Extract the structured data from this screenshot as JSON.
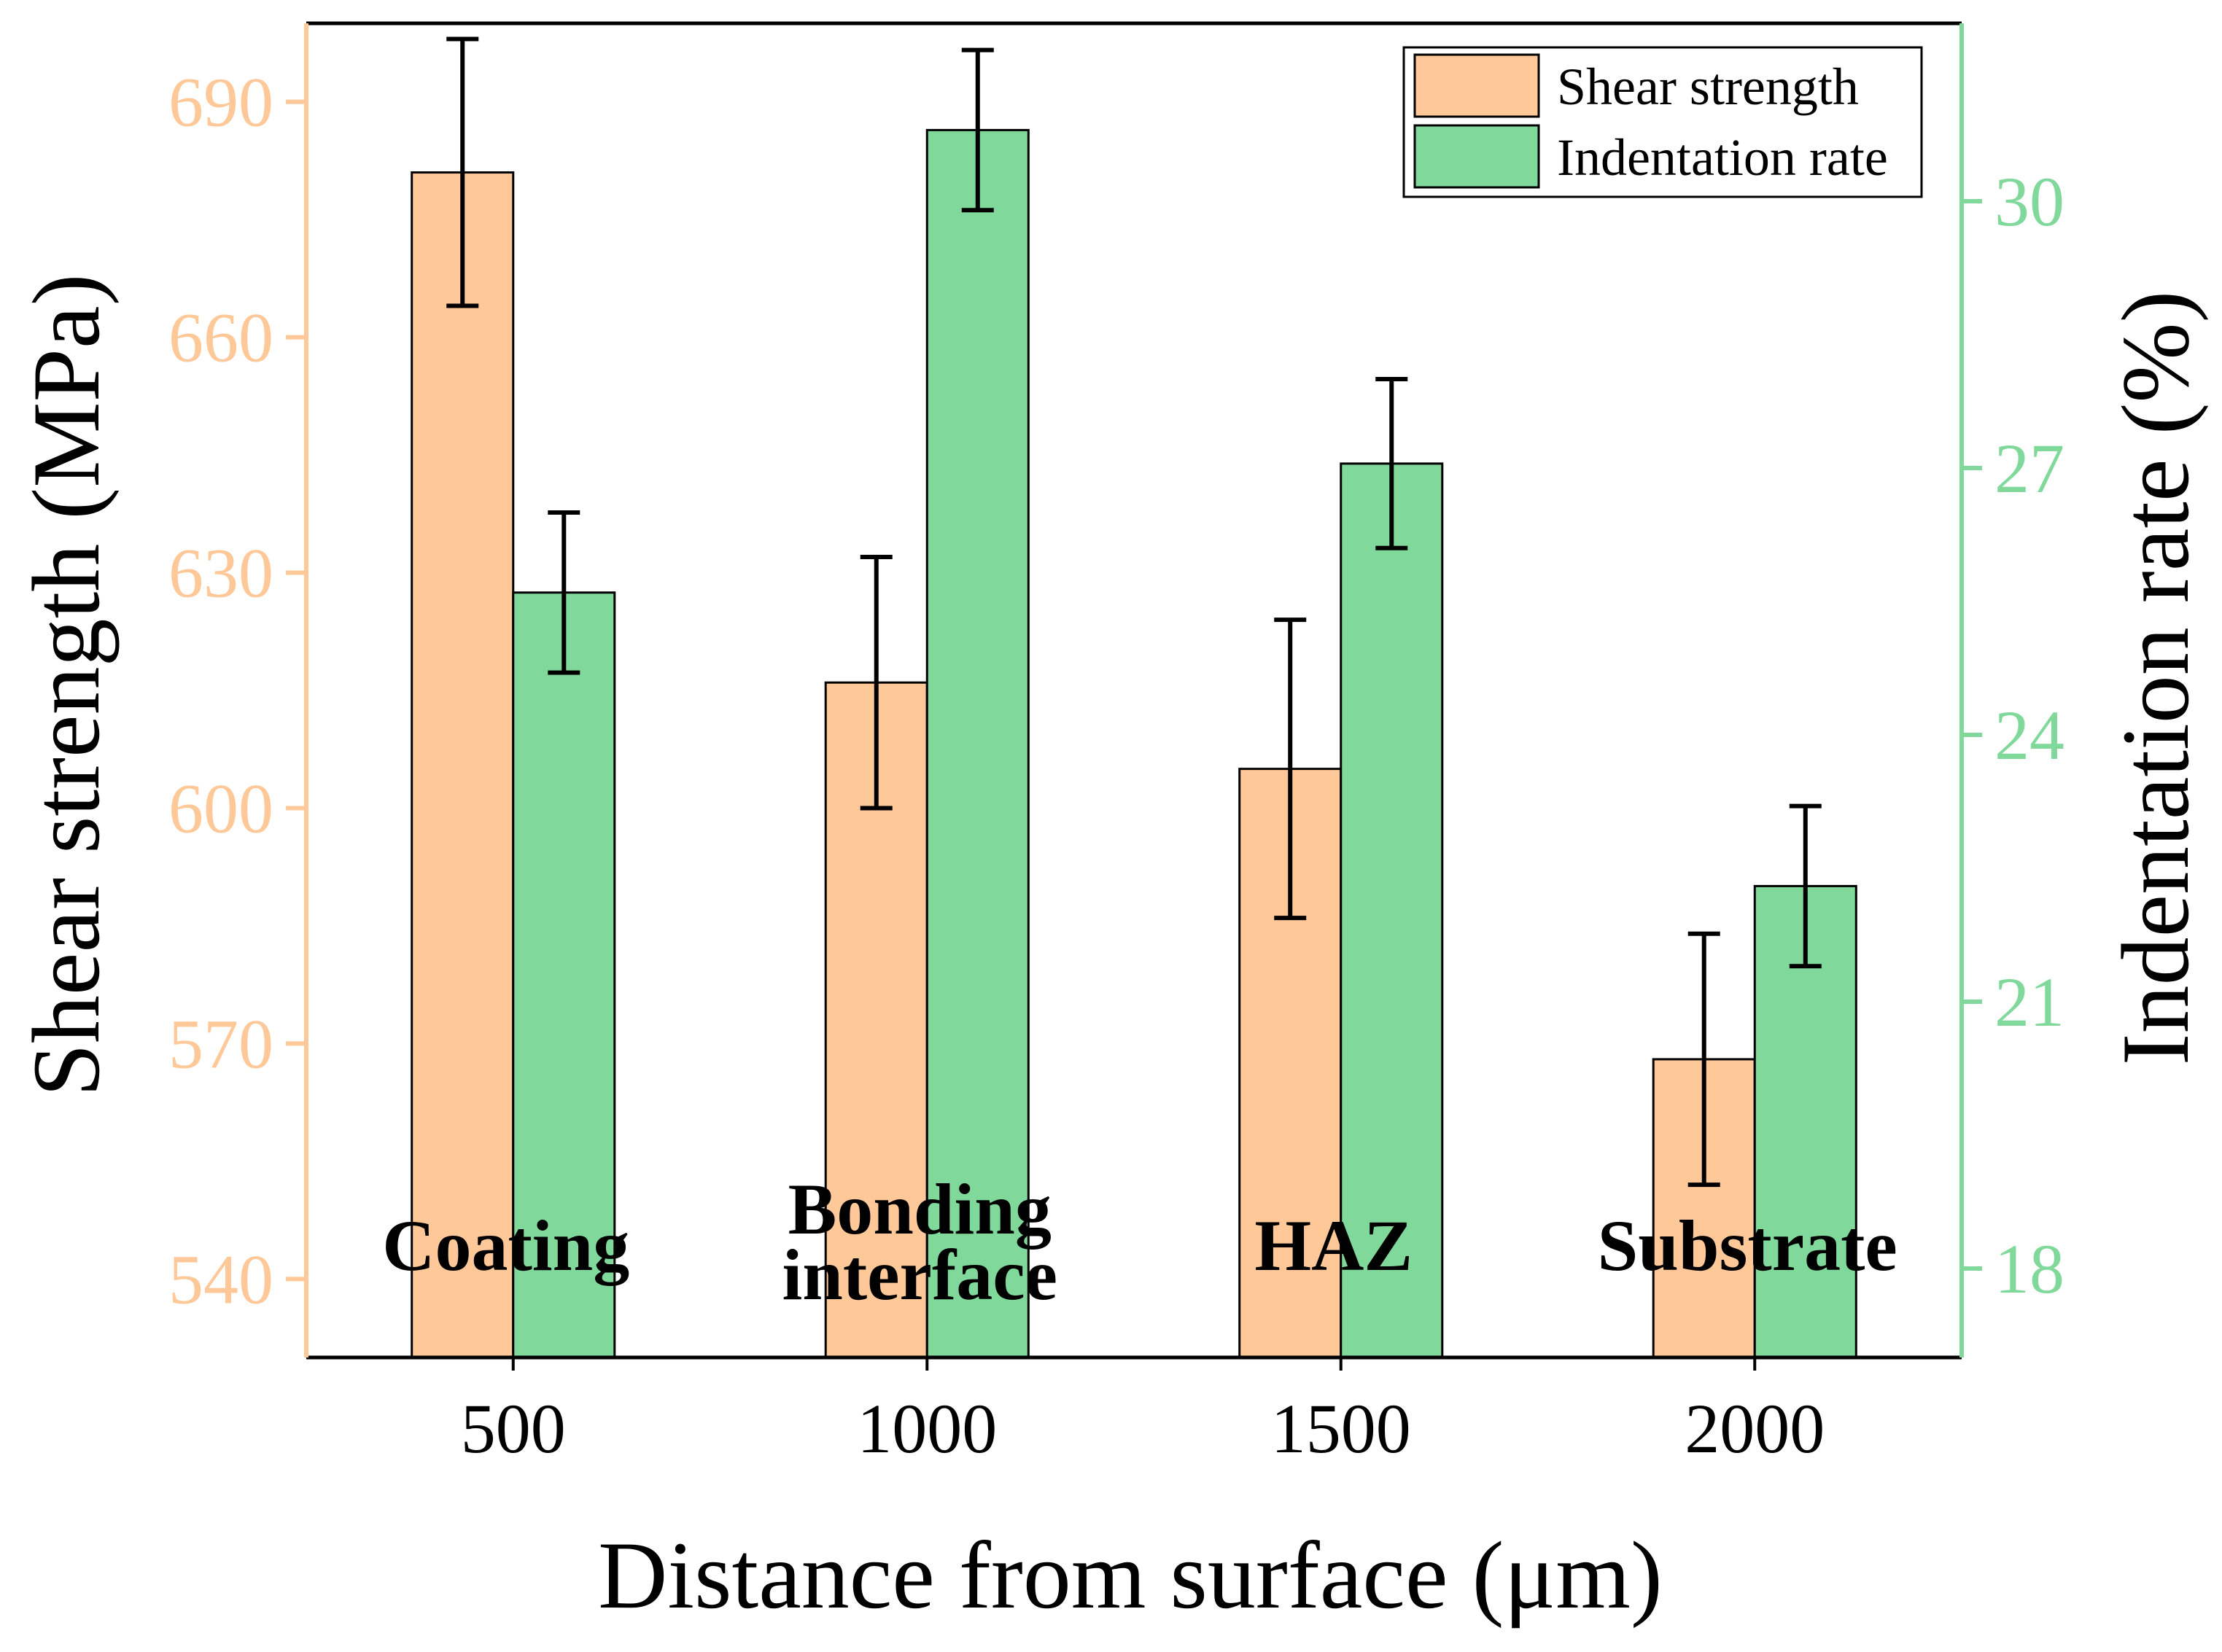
{
  "chart_data": {
    "type": "bar",
    "x": [
      500,
      1000,
      1500,
      2000
    ],
    "categories": [
      "500",
      "1000",
      "1500",
      "2000"
    ],
    "region_labels": [
      [
        "Coating"
      ],
      [
        "Bonding",
        "interface"
      ],
      [
        "HAZ"
      ],
      [
        "Substrate"
      ]
    ],
    "xlabel": "Distance from surface (μm)",
    "ylabel": "Shear strength (MPa)",
    "y2label": "Indentation rate (%)",
    "ylim": [
      530,
      700
    ],
    "y2lim": [
      17.0,
      32.0
    ],
    "yticks": [
      540,
      570,
      600,
      630,
      660,
      690
    ],
    "y2ticks": [
      18,
      21,
      24,
      27,
      30
    ],
    "series": [
      {
        "name": "Shear strength",
        "axis": "left",
        "color": "#FFC899",
        "values": [
          681,
          616,
          605,
          568
        ],
        "errors": [
          17,
          16,
          19,
          16
        ]
      },
      {
        "name": "Indentation rate",
        "axis": "right",
        "color": "#80D99B",
        "values": [
          25.6,
          30.8,
          27.05,
          22.3
        ],
        "errors": [
          0.9,
          0.9,
          0.95,
          0.9
        ]
      }
    ],
    "colors": {
      "left_axis": "#FFC899",
      "right_axis": "#80D99B",
      "frame": "#000000"
    },
    "legend_position": "top-right"
  }
}
